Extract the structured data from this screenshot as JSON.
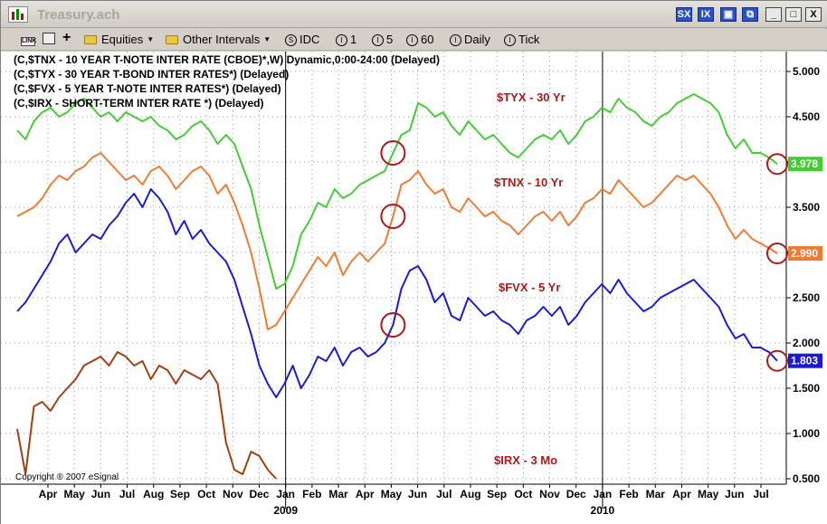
{
  "window": {
    "title": "Treasury.ach",
    "buttons": [
      "SX",
      "IX",
      "",
      "",
      "_",
      "□",
      "X"
    ]
  },
  "toolbar": {
    "link_label": "LINK",
    "equities_label": "Equities",
    "other_intervals_label": "Other Intervals",
    "idc_label": "IDC",
    "interval_1": "1",
    "interval_5": "5",
    "interval_60": "60",
    "daily_label": "Daily",
    "tick_label": "Tick"
  },
  "legend": [
    "(C,$TNX - 10 YEAR T-NOTE INTER RATE (CBOE)*,W) Dynamic,0:00-24:00 (Delayed)",
    "(C,$TYX - 30 YEAR T-BOND INTER RATES*)  (Delayed)",
    "(C,$FVX - 5 YEAR T-NOTE INTER RATES*)  (Delayed)",
    "(C,$IRX - SHORT-TERM INTER RATE *)  (Delayed)"
  ],
  "copyright": "Copyright ® 2007 eSignal",
  "colors": {
    "TYX": "#44cc33",
    "TNX": "#f07a30",
    "FVX": "#1a1ad4",
    "IRX": "#a04010",
    "label_red": "#b01818",
    "circle": "#b01818"
  },
  "chart_data": {
    "type": "line",
    "ylim": [
      0.5,
      5.0
    ],
    "yticks": [
      "5.000",
      "4.500",
      "4.000",
      "3.500",
      "3.000",
      "2.500",
      "2.000",
      "1.500",
      "1.000",
      "0.500"
    ],
    "xticks": [
      "Apr",
      "May",
      "Jun",
      "Jul",
      "Aug",
      "Sep",
      "Oct",
      "Nov",
      "Dec",
      "Jan",
      "Feb",
      "Mar",
      "Apr",
      "May",
      "Jun",
      "Jul",
      "Aug",
      "Sep",
      "Oct",
      "Nov",
      "Dec",
      "Jan",
      "Feb",
      "Mar",
      "Apr",
      "May",
      "Jun",
      "Jul"
    ],
    "year_labels": [
      "2009",
      "2010"
    ],
    "grid": true,
    "series": [
      {
        "name": "$TYX - 30 Yr",
        "key": "TYX",
        "last": "3.978",
        "values": [
          4.35,
          4.25,
          4.45,
          4.55,
          4.6,
          4.5,
          4.55,
          4.65,
          4.7,
          4.6,
          4.5,
          4.55,
          4.45,
          4.55,
          4.5,
          4.45,
          4.5,
          4.4,
          4.35,
          4.25,
          4.3,
          4.4,
          4.45,
          4.35,
          4.2,
          4.3,
          4.2,
          3.95,
          3.7,
          3.3,
          2.95,
          2.6,
          2.65,
          2.85,
          3.2,
          3.35,
          3.55,
          3.5,
          3.7,
          3.6,
          3.65,
          3.75,
          3.8,
          3.85,
          3.9,
          4.1,
          4.3,
          4.35,
          4.65,
          4.6,
          4.5,
          4.55,
          4.4,
          4.3,
          4.45,
          4.35,
          4.25,
          4.3,
          4.2,
          4.1,
          4.05,
          4.15,
          4.25,
          4.3,
          4.25,
          4.35,
          4.2,
          4.3,
          4.45,
          4.5,
          4.6,
          4.55,
          4.7,
          4.6,
          4.55,
          4.45,
          4.4,
          4.5,
          4.55,
          4.65,
          4.7,
          4.75,
          4.7,
          4.65,
          4.55,
          4.3,
          4.15,
          4.25,
          4.1,
          4.1,
          4.05,
          3.978
        ]
      },
      {
        "name": "$TNX - 10 Yr",
        "key": "TNX",
        "last": "2.990",
        "values": [
          3.4,
          3.45,
          3.5,
          3.6,
          3.75,
          3.85,
          3.8,
          3.9,
          3.95,
          4.05,
          4.1,
          4.0,
          3.9,
          3.8,
          3.85,
          3.75,
          3.9,
          3.95,
          3.85,
          3.7,
          3.8,
          3.9,
          3.95,
          3.85,
          3.65,
          3.75,
          3.55,
          3.3,
          3.0,
          2.6,
          2.15,
          2.2,
          2.35,
          2.5,
          2.65,
          2.8,
          2.95,
          2.85,
          3.0,
          2.75,
          2.9,
          3.0,
          2.9,
          3.0,
          3.1,
          3.4,
          3.75,
          3.8,
          3.9,
          3.75,
          3.65,
          3.7,
          3.5,
          3.45,
          3.6,
          3.5,
          3.4,
          3.45,
          3.35,
          3.3,
          3.2,
          3.3,
          3.4,
          3.45,
          3.35,
          3.45,
          3.3,
          3.4,
          3.55,
          3.6,
          3.7,
          3.65,
          3.8,
          3.7,
          3.6,
          3.5,
          3.55,
          3.65,
          3.75,
          3.85,
          3.8,
          3.85,
          3.75,
          3.65,
          3.5,
          3.3,
          3.15,
          3.25,
          3.15,
          3.1,
          3.05,
          2.99
        ]
      },
      {
        "name": "$FVX - 5 Yr",
        "key": "FVX",
        "last": "1.803",
        "values": [
          2.35,
          2.45,
          2.6,
          2.75,
          2.9,
          3.1,
          3.2,
          3.0,
          3.1,
          3.2,
          3.15,
          3.3,
          3.4,
          3.55,
          3.65,
          3.5,
          3.7,
          3.6,
          3.45,
          3.2,
          3.35,
          3.15,
          3.25,
          3.1,
          3.0,
          2.9,
          2.7,
          2.4,
          2.1,
          1.75,
          1.55,
          1.4,
          1.55,
          1.75,
          1.5,
          1.65,
          1.85,
          1.8,
          1.95,
          1.75,
          1.9,
          1.95,
          1.85,
          1.9,
          2.0,
          2.2,
          2.6,
          2.8,
          2.85,
          2.7,
          2.45,
          2.55,
          2.3,
          2.25,
          2.5,
          2.4,
          2.3,
          2.35,
          2.25,
          2.2,
          2.1,
          2.25,
          2.3,
          2.4,
          2.3,
          2.4,
          2.2,
          2.3,
          2.45,
          2.55,
          2.65,
          2.55,
          2.7,
          2.55,
          2.45,
          2.35,
          2.4,
          2.5,
          2.55,
          2.6,
          2.65,
          2.7,
          2.6,
          2.5,
          2.4,
          2.2,
          2.05,
          2.1,
          1.95,
          1.95,
          1.9,
          1.803
        ]
      },
      {
        "name": "$IRX - 3 Mo",
        "key": "IRX",
        "last": "",
        "values": [
          1.05,
          0.55,
          1.3,
          1.35,
          1.25,
          1.4,
          1.5,
          1.6,
          1.75,
          1.8,
          1.85,
          1.75,
          1.9,
          1.85,
          1.75,
          1.8,
          1.6,
          1.75,
          1.7,
          1.55,
          1.7,
          1.65,
          1.6,
          1.7,
          1.55,
          0.9,
          0.6,
          0.55,
          0.8,
          0.75,
          0.6,
          0.5,
          null,
          null,
          null,
          null,
          null,
          null,
          null,
          null,
          null,
          null,
          null,
          null,
          null,
          null,
          null,
          null,
          null,
          null,
          null,
          null,
          null,
          null,
          null,
          null,
          null,
          null,
          null,
          null,
          null,
          null,
          null,
          null,
          null,
          null,
          null,
          null,
          null,
          null,
          null,
          null,
          null,
          null,
          null,
          null,
          null,
          null,
          null,
          null,
          null,
          null,
          null,
          null,
          null,
          null,
          null,
          null,
          null,
          null,
          null,
          null
        ]
      }
    ],
    "series_labels": [
      {
        "key": "TYX",
        "text": "$TYX - 30 Yr"
      },
      {
        "key": "TNX",
        "text": "$TNX - 10 Yr"
      },
      {
        "key": "FVX",
        "text": "$FVX - 5 Yr"
      },
      {
        "key": "IRX",
        "text": "$IRX - 3 Mo"
      }
    ]
  }
}
